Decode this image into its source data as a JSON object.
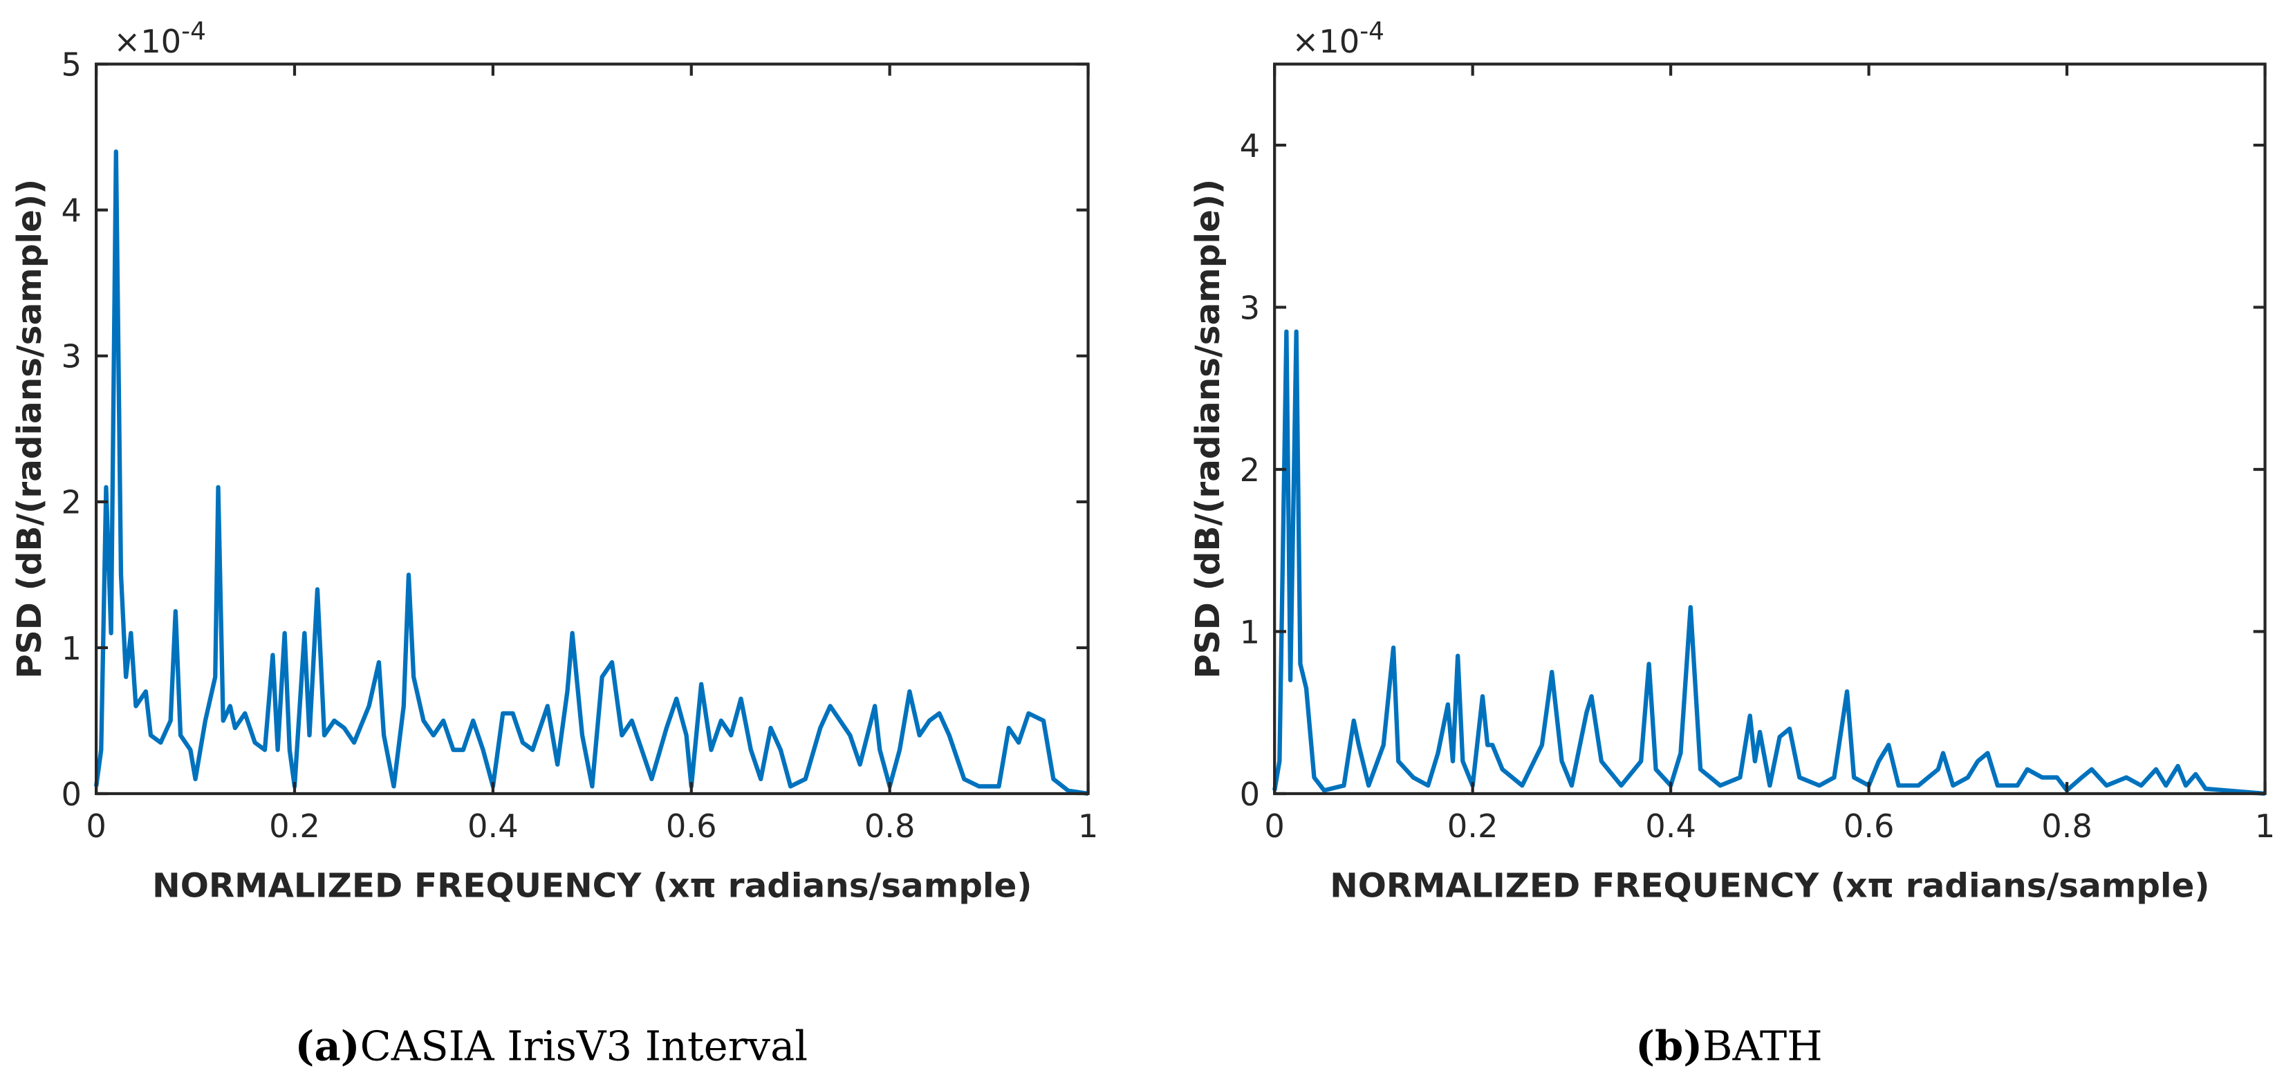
{
  "chart_data": [
    {
      "type": "line",
      "y_label": "PSD (dB/(radians/sample))",
      "x_label": "NORMALIZED FREQUENCY (xπ radians/sample)",
      "multiplier": {
        "base": "×10",
        "exponent": "-4"
      },
      "caption_label": "(a)",
      "caption": "CASIA IrisV3 Interval",
      "xlim": [
        0,
        1
      ],
      "xticks": [
        0,
        0.2,
        0.4,
        0.6,
        0.8,
        1
      ],
      "ylim": [
        0,
        5
      ],
      "yticks": [
        0,
        1,
        2,
        3,
        4,
        5
      ],
      "x": [
        0,
        0.005,
        0.01,
        0.015,
        0.02,
        0.025,
        0.03,
        0.035,
        0.04,
        0.05,
        0.055,
        0.065,
        0.075,
        0.08,
        0.085,
        0.095,
        0.1,
        0.11,
        0.12,
        0.123,
        0.128,
        0.135,
        0.14,
        0.15,
        0.16,
        0.17,
        0.178,
        0.183,
        0.19,
        0.195,
        0.2,
        0.21,
        0.215,
        0.223,
        0.23,
        0.24,
        0.25,
        0.26,
        0.275,
        0.285,
        0.29,
        0.3,
        0.31,
        0.315,
        0.32,
        0.33,
        0.34,
        0.35,
        0.36,
        0.37,
        0.38,
        0.39,
        0.4,
        0.41,
        0.42,
        0.43,
        0.44,
        0.455,
        0.465,
        0.475,
        0.48,
        0.49,
        0.5,
        0.51,
        0.52,
        0.53,
        0.54,
        0.55,
        0.56,
        0.575,
        0.585,
        0.595,
        0.6,
        0.61,
        0.62,
        0.63,
        0.64,
        0.65,
        0.66,
        0.67,
        0.68,
        0.69,
        0.7,
        0.715,
        0.73,
        0.74,
        0.75,
        0.76,
        0.77,
        0.785,
        0.79,
        0.8,
        0.81,
        0.82,
        0.83,
        0.84,
        0.85,
        0.86,
        0.875,
        0.89,
        0.91,
        0.92,
        0.93,
        0.94,
        0.955,
        0.965,
        0.98,
        1
      ],
      "series": [
        {
          "color": "#0072bd",
          "values": [
            0.05,
            0.3,
            2.1,
            1.1,
            4.4,
            1.5,
            0.8,
            1.1,
            0.6,
            0.7,
            0.4,
            0.35,
            0.5,
            1.25,
            0.4,
            0.3,
            0.1,
            0.5,
            0.8,
            2.1,
            0.5,
            0.6,
            0.45,
            0.55,
            0.35,
            0.3,
            0.95,
            0.3,
            1.1,
            0.3,
            0.05,
            1.1,
            0.4,
            1.4,
            0.4,
            0.5,
            0.45,
            0.35,
            0.6,
            0.9,
            0.4,
            0.05,
            0.6,
            1.5,
            0.8,
            0.5,
            0.4,
            0.5,
            0.3,
            0.3,
            0.5,
            0.3,
            0.05,
            0.55,
            0.55,
            0.35,
            0.3,
            0.6,
            0.2,
            0.7,
            1.1,
            0.4,
            0.05,
            0.8,
            0.9,
            0.4,
            0.5,
            0.3,
            0.1,
            0.45,
            0.65,
            0.4,
            0.05,
            0.75,
            0.3,
            0.5,
            0.4,
            0.65,
            0.3,
            0.1,
            0.45,
            0.3,
            0.05,
            0.1,
            0.45,
            0.6,
            0.5,
            0.4,
            0.2,
            0.6,
            0.3,
            0.05,
            0.3,
            0.7,
            0.4,
            0.5,
            0.55,
            0.4,
            0.1,
            0.05,
            0.05,
            0.45,
            0.35,
            0.55,
            0.5,
            0.1,
            0.02,
            0
          ]
        }
      ]
    },
    {
      "type": "line",
      "y_label": "PSD (dB/(radians/sample))",
      "x_label": "NORMALIZED FREQUENCY (xπ radians/sample)",
      "multiplier": {
        "base": "×10",
        "exponent": "-4"
      },
      "caption_label": "(b)",
      "caption": "BATH",
      "xlim": [
        0,
        1
      ],
      "xticks": [
        0,
        0.2,
        0.4,
        0.6,
        0.8,
        1
      ],
      "ylim": [
        0,
        4.5
      ],
      "yticks": [
        0,
        1,
        2,
        3,
        4
      ],
      "x": [
        0,
        0.005,
        0.012,
        0.016,
        0.022,
        0.026,
        0.032,
        0.04,
        0.05,
        0.07,
        0.08,
        0.085,
        0.095,
        0.11,
        0.12,
        0.125,
        0.14,
        0.155,
        0.165,
        0.175,
        0.18,
        0.185,
        0.19,
        0.2,
        0.21,
        0.215,
        0.22,
        0.23,
        0.25,
        0.27,
        0.28,
        0.29,
        0.3,
        0.315,
        0.32,
        0.33,
        0.35,
        0.37,
        0.378,
        0.385,
        0.4,
        0.41,
        0.42,
        0.43,
        0.45,
        0.47,
        0.48,
        0.485,
        0.49,
        0.5,
        0.51,
        0.52,
        0.53,
        0.55,
        0.565,
        0.578,
        0.585,
        0.6,
        0.61,
        0.62,
        0.63,
        0.65,
        0.67,
        0.675,
        0.685,
        0.7,
        0.71,
        0.72,
        0.73,
        0.75,
        0.76,
        0.775,
        0.79,
        0.8,
        0.815,
        0.825,
        0.84,
        0.86,
        0.875,
        0.89,
        0.9,
        0.912,
        0.92,
        0.93,
        0.94,
        0.96,
        1
      ],
      "series": [
        {
          "color": "#0072bd",
          "values": [
            0.02,
            0.2,
            2.85,
            0.7,
            2.85,
            0.8,
            0.65,
            0.1,
            0.02,
            0.05,
            0.45,
            0.3,
            0.05,
            0.3,
            0.9,
            0.2,
            0.1,
            0.05,
            0.25,
            0.55,
            0.2,
            0.85,
            0.2,
            0.05,
            0.6,
            0.3,
            0.3,
            0.15,
            0.05,
            0.3,
            0.75,
            0.2,
            0.05,
            0.5,
            0.6,
            0.2,
            0.05,
            0.2,
            0.8,
            0.15,
            0.05,
            0.25,
            1.15,
            0.15,
            0.05,
            0.1,
            0.48,
            0.2,
            0.38,
            0.05,
            0.35,
            0.4,
            0.1,
            0.05,
            0.1,
            0.63,
            0.1,
            0.05,
            0.2,
            0.3,
            0.05,
            0.05,
            0.15,
            0.25,
            0.05,
            0.1,
            0.2,
            0.25,
            0.05,
            0.05,
            0.15,
            0.1,
            0.1,
            0.02,
            0.1,
            0.15,
            0.05,
            0.1,
            0.05,
            0.15,
            0.05,
            0.17,
            0.05,
            0.12,
            0.03,
            0.02,
            0
          ]
        }
      ]
    }
  ]
}
